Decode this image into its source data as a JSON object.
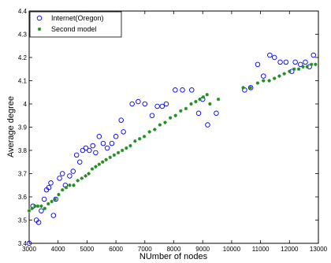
{
  "chart_data": {
    "type": "scatter",
    "title": "",
    "xlabel": "NUmber of nodes",
    "ylabel": "Average degree",
    "xlim": [
      3000,
      13000
    ],
    "ylim": [
      3.4,
      4.4
    ],
    "x_ticks": [
      "3000",
      "4000",
      "5000",
      "6000",
      "7000",
      "8000",
      "9000",
      "10000",
      "11000",
      "12000",
      "13000"
    ],
    "y_ticks": [
      "3.4",
      "3.5",
      "3.6",
      "3.7",
      "3.8",
      "3.9",
      "4",
      "4.1",
      "4.2",
      "4.3",
      "4.4"
    ],
    "grid": false,
    "legend_position": "top-left",
    "series": [
      {
        "name": "Internet(Oregon)",
        "marker": "open-circle",
        "color": "#0000ff",
        "points": [
          [
            3000,
            3.4
          ],
          [
            3130,
            3.56
          ],
          [
            3250,
            3.5
          ],
          [
            3330,
            3.49
          ],
          [
            3420,
            3.54
          ],
          [
            3520,
            3.59
          ],
          [
            3600,
            3.63
          ],
          [
            3680,
            3.64
          ],
          [
            3750,
            3.66
          ],
          [
            3840,
            3.52
          ],
          [
            3920,
            3.59
          ],
          [
            4050,
            3.68
          ],
          [
            4150,
            3.7
          ],
          [
            4250,
            3.65
          ],
          [
            4400,
            3.69
          ],
          [
            4520,
            3.71
          ],
          [
            4640,
            3.78
          ],
          [
            4750,
            3.75
          ],
          [
            4850,
            3.8
          ],
          [
            4960,
            3.81
          ],
          [
            5080,
            3.8
          ],
          [
            5200,
            3.82
          ],
          [
            5300,
            3.79
          ],
          [
            5420,
            3.86
          ],
          [
            5560,
            3.83
          ],
          [
            5700,
            3.81
          ],
          [
            5860,
            3.83
          ],
          [
            6000,
            3.86
          ],
          [
            6180,
            3.93
          ],
          [
            6260,
            3.88
          ],
          [
            6560,
            4.0
          ],
          [
            6770,
            4.01
          ],
          [
            7000,
            4.0
          ],
          [
            7250,
            3.95
          ],
          [
            7430,
            3.99
          ],
          [
            7600,
            3.99
          ],
          [
            7740,
            4.0
          ],
          [
            8050,
            4.06
          ],
          [
            8300,
            4.06
          ],
          [
            8620,
            4.06
          ],
          [
            8860,
            3.96
          ],
          [
            9000,
            4.02
          ],
          [
            9170,
            3.91
          ],
          [
            9470,
            3.96
          ],
          [
            10450,
            4.06
          ],
          [
            10660,
            4.07
          ],
          [
            10900,
            4.17
          ],
          [
            11100,
            4.12
          ],
          [
            11320,
            4.21
          ],
          [
            11480,
            4.2
          ],
          [
            11680,
            4.18
          ],
          [
            11880,
            4.18
          ],
          [
            12080,
            4.14
          ],
          [
            12200,
            4.18
          ],
          [
            12380,
            4.17
          ],
          [
            12550,
            4.18
          ],
          [
            12690,
            4.16
          ],
          [
            12830,
            4.21
          ]
        ]
      },
      {
        "name": "Second model",
        "marker": "asterisk",
        "color": "#228b22",
        "points": [
          [
            3000,
            3.54
          ],
          [
            3100,
            3.55
          ],
          [
            3200,
            3.56
          ],
          [
            3300,
            3.56
          ],
          [
            3420,
            3.56
          ],
          [
            3540,
            3.55
          ],
          [
            3660,
            3.57
          ],
          [
            3780,
            3.58
          ],
          [
            3900,
            3.59
          ],
          [
            4020,
            3.61
          ],
          [
            4150,
            3.63
          ],
          [
            4280,
            3.64
          ],
          [
            4400,
            3.65
          ],
          [
            4540,
            3.65
          ],
          [
            4680,
            3.67
          ],
          [
            4820,
            3.68
          ],
          [
            4950,
            3.69
          ],
          [
            5060,
            3.7
          ],
          [
            5180,
            3.72
          ],
          [
            5300,
            3.73
          ],
          [
            5420,
            3.74
          ],
          [
            5540,
            3.75
          ],
          [
            5660,
            3.76
          ],
          [
            5800,
            3.77
          ],
          [
            5940,
            3.78
          ],
          [
            6080,
            3.79
          ],
          [
            6220,
            3.8
          ],
          [
            6360,
            3.81
          ],
          [
            6500,
            3.82
          ],
          [
            6660,
            3.84
          ],
          [
            6820,
            3.85
          ],
          [
            6980,
            3.86
          ],
          [
            7160,
            3.88
          ],
          [
            7340,
            3.89
          ],
          [
            7520,
            3.91
          ],
          [
            7700,
            3.92
          ],
          [
            7880,
            3.94
          ],
          [
            8060,
            3.95
          ],
          [
            8240,
            3.97
          ],
          [
            8420,
            3.98
          ],
          [
            8600,
            4.0
          ],
          [
            8760,
            4.01
          ],
          [
            8900,
            4.02
          ],
          [
            9020,
            4.03
          ],
          [
            9150,
            4.04
          ],
          [
            9250,
            4.0
          ],
          [
            9540,
            4.02
          ],
          [
            10400,
            4.07
          ],
          [
            10650,
            4.07
          ],
          [
            10900,
            4.09
          ],
          [
            11100,
            4.1
          ],
          [
            11300,
            4.1
          ],
          [
            11480,
            4.11
          ],
          [
            11650,
            4.12
          ],
          [
            11820,
            4.13
          ],
          [
            12000,
            4.14
          ],
          [
            12160,
            4.15
          ],
          [
            12320,
            4.15
          ],
          [
            12470,
            4.16
          ],
          [
            12610,
            4.16
          ],
          [
            12760,
            4.17
          ],
          [
            12900,
            4.17
          ]
        ]
      }
    ]
  }
}
